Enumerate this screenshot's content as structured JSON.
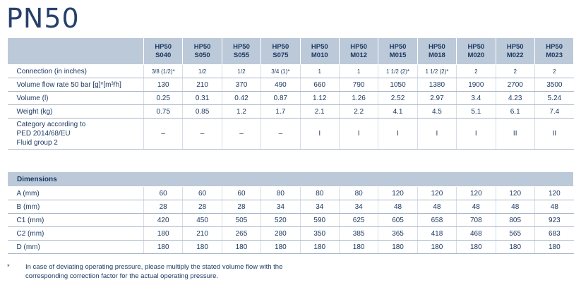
{
  "title": "PN50",
  "models": [
    {
      "series": "HP50",
      "code": "S040"
    },
    {
      "series": "HP50",
      "code": "S050"
    },
    {
      "series": "HP50",
      "code": "S055"
    },
    {
      "series": "HP50",
      "code": "S075"
    },
    {
      "series": "HP50",
      "code": "M010"
    },
    {
      "series": "HP50",
      "code": "M012"
    },
    {
      "series": "HP50",
      "code": "M015"
    },
    {
      "series": "HP50",
      "code": "M018"
    },
    {
      "series": "HP50",
      "code": "M020"
    },
    {
      "series": "HP50",
      "code": "M022"
    },
    {
      "series": "HP50",
      "code": "M023"
    }
  ],
  "spec_rows": [
    {
      "label": "Connection (in inches)",
      "small": true,
      "values": [
        "3/8 (1/2)*",
        "1/2",
        "1/2",
        "3/4 (1)*",
        "1",
        "1",
        "1 1/2 (2)*",
        "1 1/2 (2)*",
        "2",
        "2",
        "2"
      ]
    },
    {
      "label": "Volume flow rate 50 bar [g]*[m³/h]",
      "values": [
        "130",
        "210",
        "370",
        "490",
        "660",
        "790",
        "1050",
        "1380",
        "1900",
        "2700",
        "3500"
      ]
    },
    {
      "label": "Volume (l)",
      "values": [
        "0.25",
        "0.31",
        "0.42",
        "0.87",
        "1.12",
        "1.26",
        "2.52",
        "2.97",
        "3.4",
        "4.23",
        "5.24"
      ]
    },
    {
      "label": "Weight (kg)",
      "values": [
        "0.75",
        "0.85",
        "1.2",
        "1.7",
        "2.1",
        "2.2",
        "4.1",
        "4.5",
        "5.1",
        "6.1",
        "7.4"
      ]
    },
    {
      "label_lines": [
        "Category according to",
        "PED 2014/68/EU",
        "Fluid group 2"
      ],
      "values": [
        "–",
        "–",
        "–",
        "–",
        "I",
        "I",
        "I",
        "I",
        "I",
        "II",
        "II"
      ]
    }
  ],
  "dimensions": {
    "heading": "Dimensions",
    "rows": [
      {
        "label": "A (mm)",
        "values": [
          "60",
          "60",
          "60",
          "80",
          "80",
          "80",
          "120",
          "120",
          "120",
          "120",
          "120"
        ]
      },
      {
        "label": "B (mm)",
        "values": [
          "28",
          "28",
          "28",
          "34",
          "34",
          "34",
          "48",
          "48",
          "48",
          "48",
          "48"
        ]
      },
      {
        "label": "C1 (mm)",
        "values": [
          "420",
          "450",
          "505",
          "520",
          "590",
          "625",
          "605",
          "658",
          "708",
          "805",
          "923"
        ]
      },
      {
        "label": "C2 (mm)",
        "values": [
          "180",
          "210",
          "265",
          "280",
          "350",
          "385",
          "365",
          "418",
          "468",
          "565",
          "683"
        ]
      },
      {
        "label": "D (mm)",
        "values": [
          "180",
          "180",
          "180",
          "180",
          "180",
          "180",
          "180",
          "180",
          "180",
          "180",
          "180"
        ]
      }
    ]
  },
  "footnote": {
    "marker": "*",
    "text": "In case of deviating operating pressure, please multiply the stated volume flow with the corresponding correction factor for the actual operating pressure."
  }
}
